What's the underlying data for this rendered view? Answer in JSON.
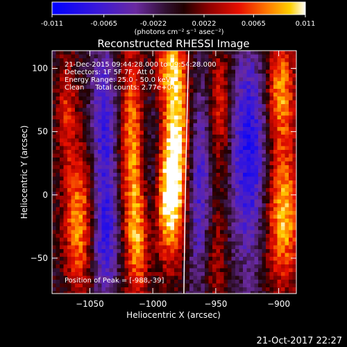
{
  "chart_data": {
    "type": "heatmap",
    "title": "Reconstructed RHESSI Image",
    "xlabel": "Heliocentric X (arcsec)",
    "ylabel": "Heliocentric Y (arcsec)",
    "xlim": [
      -1080,
      -886
    ],
    "ylim": [
      -78,
      114
    ],
    "x_ticks": [
      -1050,
      -1000,
      -950,
      -900
    ],
    "y_ticks": [
      -50,
      0,
      50,
      100
    ],
    "colorbar": {
      "ticks": [
        "-0.011",
        "-0.0065",
        "-0.0022",
        "0.0022",
        "0.0065",
        "0.011"
      ],
      "range": [
        -0.011,
        0.011
      ],
      "units_label": "(photons cm⁻² s⁻¹ asec⁻²)"
    },
    "annotations": {
      "time_range": "21-Dec-2015 09:44:28.000 to 09:54:28.000",
      "detectors": "Detectors: 1F 5F 7F, Att 0",
      "energy_range": "Energy Range: 25.0 - 50.0 keV",
      "clean_counts": "Clean     Total counts: 2.77e+04",
      "peak": "Position of Peak = [-988,-39]"
    },
    "limb_line": true,
    "grid": false,
    "colormap": [
      "#0000ff",
      "#4020c0",
      "#6030a0",
      "#202020",
      "#800000",
      "#e00000",
      "#ff6000",
      "#ffc000",
      "#ffffff"
    ]
  },
  "footer_timestamp": "21-Oct-2017 22:27"
}
